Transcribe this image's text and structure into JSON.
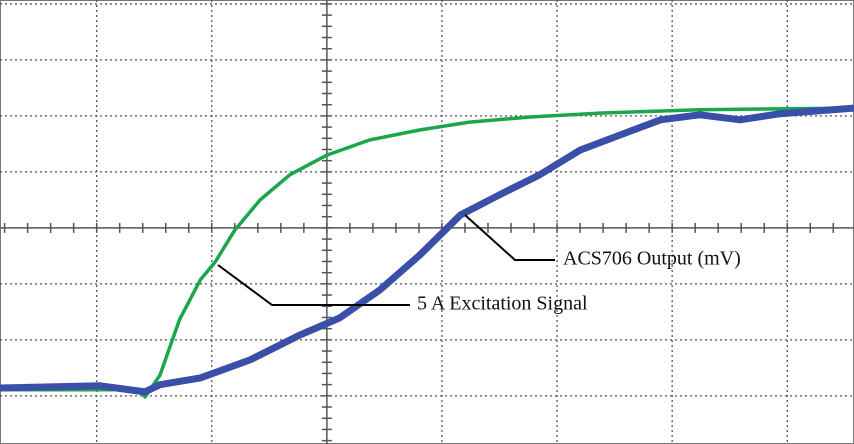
{
  "chart_data": {
    "type": "line",
    "xlim": [
      -2.84,
      4.58
    ],
    "ylim": [
      -3.86,
      4.07
    ],
    "xticks": [
      -2,
      -1,
      0,
      1,
      2,
      3,
      4
    ],
    "yticks": [
      -3,
      -2,
      -1,
      0,
      1,
      2,
      3,
      4
    ],
    "grid": true,
    "series": [
      {
        "name": "5 A Excitation Signal",
        "color": "#1aa64a",
        "x": [
          -2.84,
          -1.63,
          -1.58,
          -1.45,
          -1.28,
          -1.1,
          -0.97,
          -0.8,
          -0.58,
          -0.32,
          0,
          0.37,
          0.81,
          1.24,
          1.77,
          2.37,
          3.24,
          4.58
        ],
        "values": [
          -2.89,
          -2.89,
          -3.02,
          -2.63,
          -1.64,
          -0.93,
          -0.61,
          -0.04,
          0.5,
          0.95,
          1.3,
          1.57,
          1.75,
          1.89,
          1.98,
          2.05,
          2.11,
          2.14
        ]
      },
      {
        "name": "ACS706 Output (mV)",
        "color": "#3a4fa8",
        "x": [
          -2.84,
          -1.97,
          -1.58,
          -1.45,
          -1.1,
          -0.67,
          -0.23,
          0.11,
          0.46,
          0.81,
          1.16,
          1.5,
          1.85,
          2.2,
          2.55,
          2.9,
          3.24,
          3.59,
          3.94,
          4.58
        ],
        "values": [
          -2.86,
          -2.82,
          -2.93,
          -2.8,
          -2.68,
          -2.36,
          -1.91,
          -1.61,
          -1.11,
          -0.48,
          0.23,
          0.59,
          0.95,
          1.39,
          1.66,
          1.93,
          2.02,
          1.93,
          2.04,
          2.14
        ]
      }
    ]
  }
}
